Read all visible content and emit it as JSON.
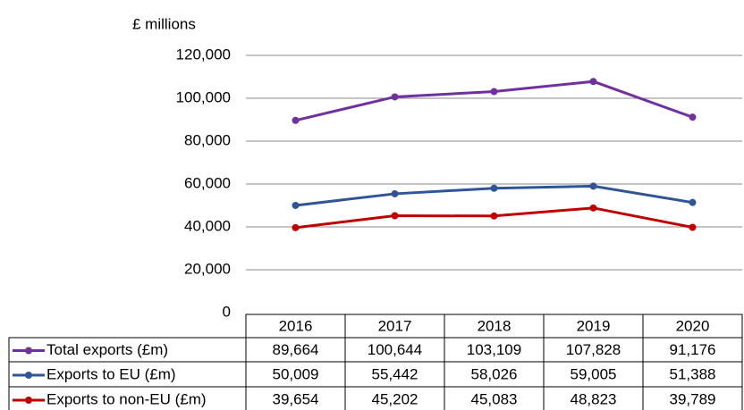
{
  "chart_data": {
    "type": "line",
    "y_label": "£ millions",
    "categories": [
      "2016",
      "2017",
      "2018",
      "2019",
      "2020"
    ],
    "series": [
      {
        "name": "Total exports (£m)",
        "color": "#7030a0",
        "values": [
          89664,
          100644,
          103109,
          107828,
          91176
        ],
        "value_labels": [
          "89,664",
          "100,644",
          "103,109",
          "107,828",
          "91,176"
        ]
      },
      {
        "name": "Exports to EU (£m)",
        "color": "#2f5597",
        "values": [
          50009,
          55442,
          58026,
          59005,
          51388
        ],
        "value_labels": [
          "50,009",
          "55,442",
          "58,026",
          "59,005",
          "51,388"
        ]
      },
      {
        "name": "Exports to non-EU (£m)",
        "color": "#c00000",
        "values": [
          39654,
          45202,
          45083,
          48823,
          39789
        ],
        "value_labels": [
          "39,654",
          "45,202",
          "45,083",
          "48,823",
          "39,789"
        ]
      }
    ],
    "ylim": [
      0,
      120000
    ],
    "yticks": [
      0,
      {
        "value": 20000,
        "label": "20,000"
      },
      {
        "value": 40000,
        "label": "40,000"
      },
      {
        "value": 60000,
        "label": "60,000"
      },
      {
        "value": 80000,
        "label": "80,000"
      },
      {
        "value": 100000,
        "label": "100,000"
      },
      {
        "value": 120000,
        "label": "120,000"
      }
    ],
    "grid": true,
    "data_table": true
  }
}
